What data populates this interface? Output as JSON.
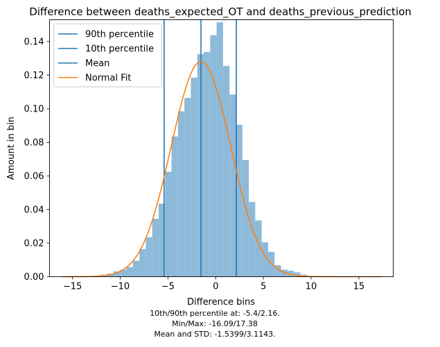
{
  "chart_data": {
    "type": "bar",
    "title": "Difference between deaths_expected_OT and deaths_previous_prediction",
    "xlabel": "Difference bins",
    "ylabel": "Amount in bin",
    "xlim": [
      -17.4,
      18.6
    ],
    "ylim": [
      0,
      0.153
    ],
    "xticks": [
      -15,
      -10,
      -5,
      0,
      5,
      10,
      15
    ],
    "yticks": [
      0.0,
      0.02,
      0.04,
      0.06,
      0.08,
      0.1,
      0.12,
      0.14
    ],
    "xtick_labels": [
      "−15",
      "−10",
      "−5",
      "0",
      "5",
      "10",
      "15"
    ],
    "ytick_labels": [
      "0.00",
      "0.02",
      "0.04",
      "0.06",
      "0.08",
      "0.10",
      "0.12",
      "0.14"
    ],
    "grid": false,
    "legend_position": "top-left",
    "bin_edges_start": -16.09,
    "bin_width": 0.6746,
    "histogram_values": [
      0.0001,
      0.0001,
      0.0002,
      0.0003,
      0.0004,
      0.0006,
      0.0012,
      0.0018,
      0.0032,
      0.0042,
      0.0058,
      0.0095,
      0.0165,
      0.0235,
      0.0345,
      0.0435,
      0.0625,
      0.0835,
      0.0985,
      0.1065,
      0.1185,
      0.1325,
      0.1338,
      0.1438,
      0.1515,
      0.1255,
      0.1085,
      0.0905,
      0.0695,
      0.0445,
      0.0335,
      0.0205,
      0.0148,
      0.0068,
      0.0042,
      0.0035,
      0.0026,
      0.0012,
      0.0004,
      0.0002,
      0.0001,
      0.0001,
      0.0001,
      0.0001,
      0.0001,
      0.0001,
      0.0001,
      0.0001,
      0.0001
    ],
    "vertical_lines": [
      {
        "name": "90th percentile",
        "x": 2.16
      },
      {
        "name": "10th percentile",
        "x": -5.4
      },
      {
        "name": "Mean",
        "x": -1.5399
      }
    ],
    "normal_fit": {
      "name": "Normal Fit",
      "mean": -1.5399,
      "std": 3.1143,
      "x_range": [
        -16.09,
        17.38
      ]
    },
    "colors": {
      "histogram": "#8ebad9",
      "lines": "#1f77b4",
      "fit": "#ff7f0e"
    }
  },
  "legend": {
    "items": [
      {
        "label": "90th percentile",
        "color": "#1f77b4"
      },
      {
        "label": "10th percentile",
        "color": "#1f77b4"
      },
      {
        "label": "Mean",
        "color": "#1f77b4"
      },
      {
        "label": "Normal Fit",
        "color": "#ff7f0e"
      }
    ]
  },
  "footer": {
    "line1": "10th/90th percentile at: -5.4/2.16.",
    "line2": "Min/Max: -16.09/17.38",
    "line3": "Mean and STD: -1.5399/3.1143."
  }
}
